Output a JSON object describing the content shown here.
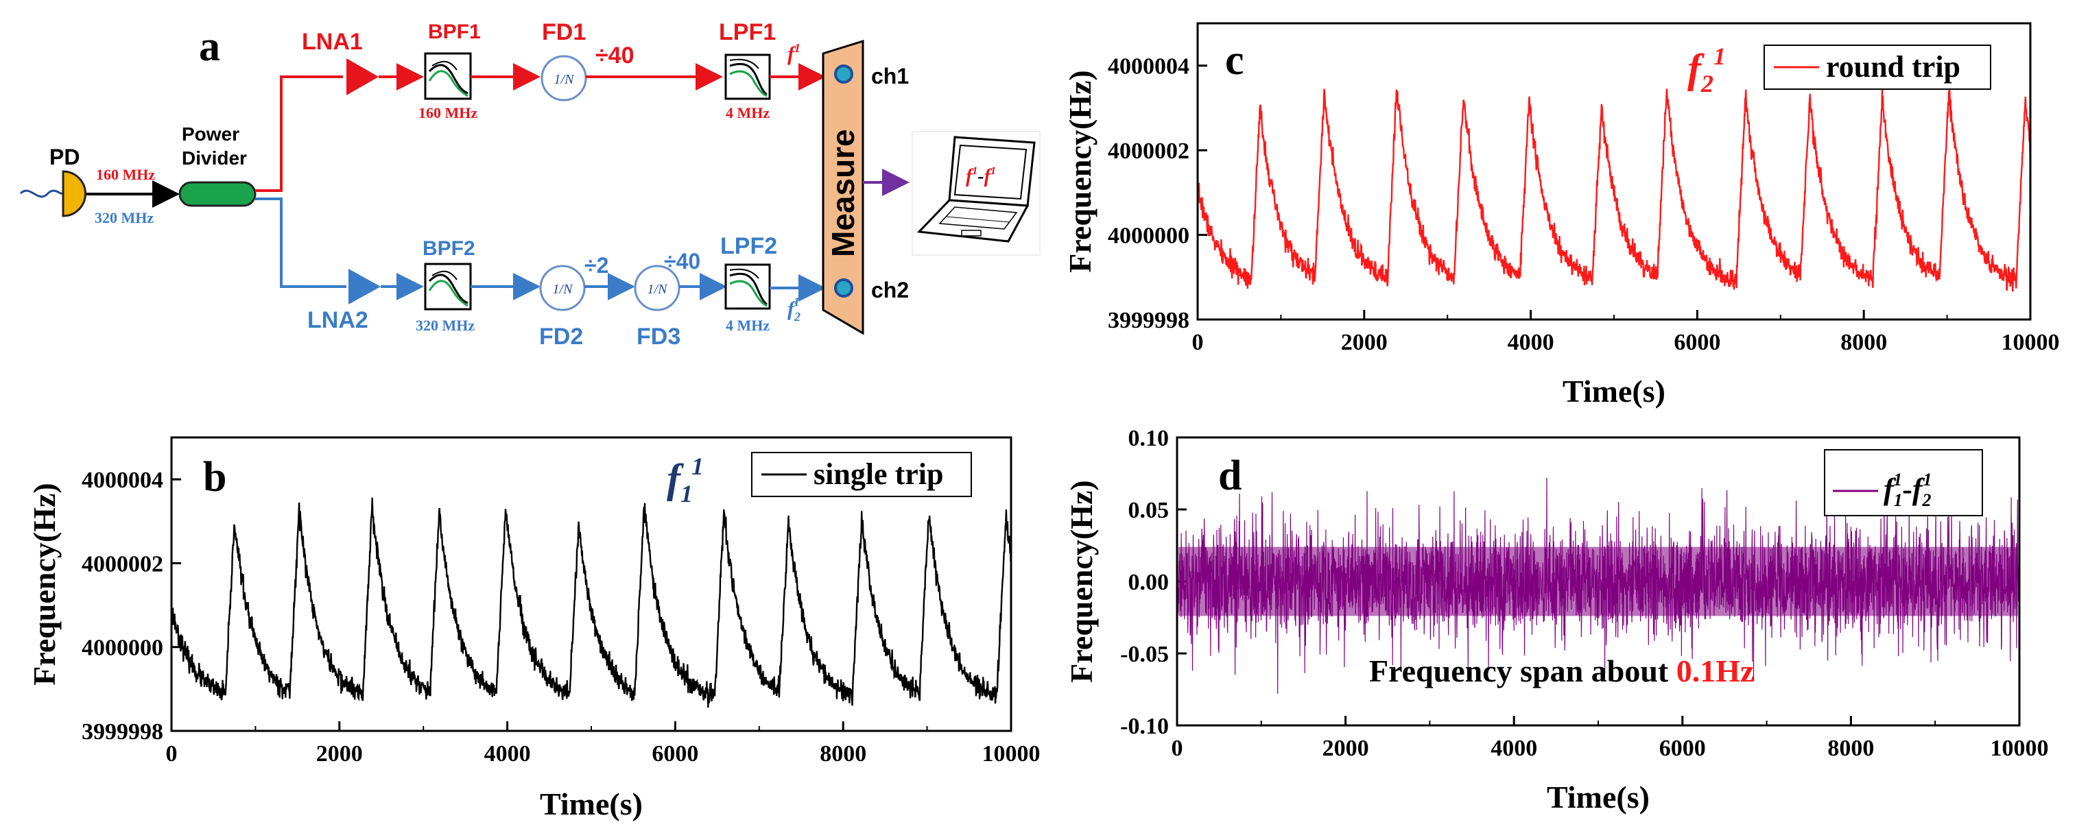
{
  "diagram": {
    "letter": "a",
    "pd": {
      "label": "PD",
      "freq_top": "160 MHz",
      "freq_bottom": "320 MHz"
    },
    "power_divider": {
      "label_line1": "Power",
      "label_line2": "Divider"
    },
    "top_path": {
      "lna": "LNA1",
      "bpf": "BPF1",
      "bpf_freq": "160 MHz",
      "fd": "FD1",
      "fd_symbol": "1/N",
      "fd_div": "÷40",
      "lpf": "LPF1",
      "lpf_freq": "4 MHz",
      "out_f": "f",
      "out_f_sup": "1",
      "channel": "ch1"
    },
    "bottom_path": {
      "lna": "LNA2",
      "bpf": "BPF2",
      "bpf_freq": "320 MHz",
      "fd2": "FD2",
      "fd2_symbol": "1/N",
      "fd2_div": "÷2",
      "fd3": "FD3",
      "fd3_symbol": "1/N",
      "fd3_div": "÷40",
      "lpf": "LPF2",
      "lpf_freq": "4 MHz",
      "out_f": "f",
      "out_f_sub": "2",
      "out_f_sup": "1",
      "channel": "ch2"
    },
    "measure": "Measure",
    "laptop_f1": "f",
    "laptop_f1_sup": "1",
    "laptop_dash": "-",
    "laptop_f2": "f",
    "laptop_f2_sup": "1",
    "colors": {
      "red": "#e8141b",
      "blue": "#3a7cc8",
      "green": "#1aa34a",
      "purple": "#7030a0",
      "measure": "#f2b98a",
      "pd": "#f2b400"
    }
  },
  "chart_data": [
    {
      "id": "c",
      "panel_letter": "c",
      "type": "line",
      "color": "#ff1a1a",
      "xlabel": "Time(s)",
      "ylabel": "Frequency(Hz)",
      "xlim": [
        0,
        10000
      ],
      "ylim": [
        3999998,
        4000005
      ],
      "xticks": [
        "0",
        "2000",
        "4000",
        "6000",
        "8000",
        "10000"
      ],
      "yticks": [
        "3999998",
        "4000000",
        "4000002",
        "4000004"
      ],
      "legend": "round trip",
      "annotation": {
        "f": "f",
        "sub": "2",
        "sup": "1"
      },
      "baseline": 3999998.8,
      "peaks": [
        {
          "t": 750,
          "v": 4000003.0
        },
        {
          "t": 1520,
          "v": 4000003.4
        },
        {
          "t": 2390,
          "v": 4000003.5
        },
        {
          "t": 3190,
          "v": 4000003.3
        },
        {
          "t": 3980,
          "v": 4000003.2
        },
        {
          "t": 4850,
          "v": 4000003.0
        },
        {
          "t": 5630,
          "v": 4000003.4
        },
        {
          "t": 6580,
          "v": 4000003.3
        },
        {
          "t": 7350,
          "v": 4000003.2
        },
        {
          "t": 8220,
          "v": 4000003.2
        },
        {
          "t": 9020,
          "v": 4000003.4
        },
        {
          "t": 9940,
          "v": 4000003.2
        }
      ],
      "start_value": 4000001.1
    },
    {
      "id": "b",
      "panel_letter": "b",
      "type": "line",
      "color": "#000000",
      "xlabel": "Time(s)",
      "ylabel": "Frequency(Hz)",
      "xlim": [
        0,
        10000
      ],
      "ylim": [
        3999998,
        4000005
      ],
      "xticks": [
        "0",
        "2000",
        "4000",
        "6000",
        "8000",
        "10000"
      ],
      "yticks": [
        "3999998",
        "4000000",
        "4000002",
        "4000004"
      ],
      "legend": "single trip",
      "annotation": {
        "f": "f",
        "sub": "1",
        "sup": "1"
      },
      "baseline": 3999998.7,
      "peaks": [
        {
          "t": 750,
          "v": 4000003.0
        },
        {
          "t": 1520,
          "v": 4000003.3
        },
        {
          "t": 2390,
          "v": 4000003.4
        },
        {
          "t": 3190,
          "v": 4000003.2
        },
        {
          "t": 3980,
          "v": 4000003.3
        },
        {
          "t": 4850,
          "v": 4000002.9
        },
        {
          "t": 5630,
          "v": 4000003.4
        },
        {
          "t": 6580,
          "v": 4000003.2
        },
        {
          "t": 7350,
          "v": 4000003.0
        },
        {
          "t": 8220,
          "v": 4000003.1
        },
        {
          "t": 9020,
          "v": 4000003.2
        },
        {
          "t": 9940,
          "v": 4000003.2
        }
      ],
      "start_value": 4000000.9
    },
    {
      "id": "d",
      "panel_letter": "d",
      "type": "line",
      "color": "#800080",
      "xlabel": "Time(s)",
      "ylabel": "Frequency(Hz)",
      "xlim": [
        0,
        10000
      ],
      "ylim": [
        -0.1,
        0.1
      ],
      "xticks": [
        "0",
        "2000",
        "4000",
        "6000",
        "8000",
        "10000"
      ],
      "yticks": [
        "-0.10",
        "-0.05",
        "0.00",
        "0.05",
        "0.10"
      ],
      "legend": {
        "f1": "f",
        "sub1": "1",
        "sup1": "1",
        "dash": "-",
        "f2": "f",
        "sub2": "2",
        "sup2": "1"
      },
      "noise_band": [
        -0.035,
        0.035
      ],
      "outlier_extremes": [
        0.072,
        -0.078
      ],
      "annotation_text": "Frequency span about ",
      "annotation_value": "0.1Hz"
    }
  ]
}
